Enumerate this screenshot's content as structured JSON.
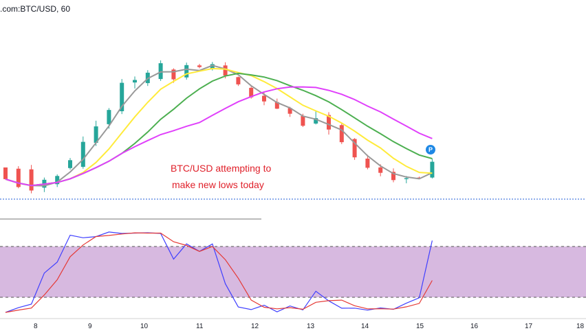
{
  "header": {
    "symbol": ".com:BTC/USD, 60"
  },
  "chart_data": [
    {
      "type": "candlestick",
      "title": ".com:BTC/USD, 60",
      "annotation_lines": [
        "BTC/USD attempting to",
        "make new lows today"
      ],
      "marker_label": "P",
      "candles": [
        [
          12.2,
          8.5,
          12.0,
          8.5
        ],
        [
          11.8,
          6.0,
          12.6,
          5.6
        ],
        [
          11.6,
          4.9,
          13.0,
          4.0
        ],
        [
          5.8,
          8.3,
          9.0,
          4.4
        ],
        [
          6.9,
          9.5,
          10.0,
          6.0
        ],
        [
          12.0,
          14.5,
          15.2,
          11.5
        ],
        [
          12.4,
          20.3,
          22.0,
          11.8
        ],
        [
          20.0,
          25.2,
          27.0,
          19.0
        ],
        [
          25.9,
          30.4,
          31.0,
          24.5
        ],
        [
          30.0,
          39.0,
          40.2,
          29.1
        ],
        [
          39.1,
          39.9,
          41.0,
          37.2
        ],
        [
          38.9,
          42.2,
          43.0,
          38.0
        ],
        [
          40.2,
          45.2,
          46.1,
          39.6
        ],
        [
          43.2,
          40.1,
          43.6,
          39.0
        ],
        [
          40.7,
          44.6,
          45.4,
          40.0
        ],
        [
          44.5,
          44.0,
          45.0,
          43.6
        ],
        [
          43.5,
          44.9,
          45.6,
          42.9
        ],
        [
          44.5,
          41.3,
          45.5,
          40.4
        ],
        [
          40.8,
          38.5,
          41.0,
          38.0
        ],
        [
          37.4,
          34.4,
          37.8,
          34.0
        ],
        [
          34.9,
          33.1,
          35.9,
          31.9
        ],
        [
          32.9,
          30.8,
          34.0,
          30.7
        ],
        [
          31.0,
          29.2,
          31.4,
          28.2
        ],
        [
          28.5,
          25.4,
          29.2,
          25.0
        ],
        [
          26.1,
          27.8,
          30.0,
          25.8
        ],
        [
          28.8,
          24.2,
          29.7,
          22.6
        ],
        [
          25.6,
          20.2,
          26.1,
          19.6
        ],
        [
          21.2,
          15.4,
          21.5,
          14.6
        ],
        [
          15.0,
          12.1,
          16.2,
          11.6
        ],
        [
          12.2,
          10.5,
          13.2,
          9.4
        ],
        [
          10.8,
          8.2,
          11.9,
          7.5
        ],
        [
          8.5,
          8.8,
          9.5,
          7.2
        ],
        [
          9.0,
          8.8,
          9.3,
          8.7
        ],
        [
          9.0,
          14.0,
          15.0,
          8.7
        ]
      ],
      "ma_lines": [
        {
          "name": "gray",
          "color": "#999999"
        },
        {
          "name": "yellow",
          "color": "#ffeb3b"
        },
        {
          "name": "green",
          "color": "#4caf50"
        },
        {
          "name": "pink",
          "color": "#e040fb"
        }
      ],
      "oscillator": {
        "type": "stochastic",
        "fast_color": "#3f3fff",
        "slow_color": "#e53935",
        "band_color": "#c39bd3",
        "band": [
          20,
          80
        ]
      },
      "x_ticks": [
        "8",
        "9",
        "10",
        "11",
        "12",
        "13",
        "14",
        "15",
        "16",
        "17",
        "18"
      ]
    }
  ]
}
